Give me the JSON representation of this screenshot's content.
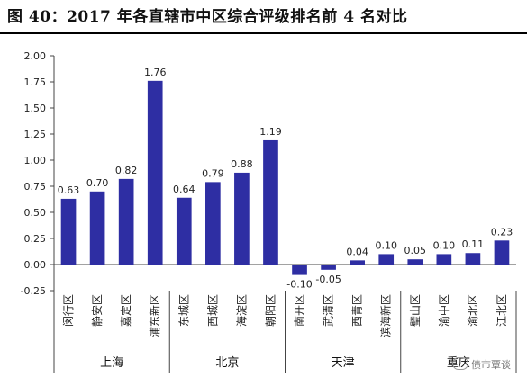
{
  "title": "图 40：2017 年各直辖市中区综合评级排名前 4 名对比",
  "watermark": "债市覃谈",
  "chart_data": {
    "type": "bar",
    "color": "#2E2EA3",
    "ylim": [
      -0.25,
      2.0
    ],
    "yticks": [
      "2.00",
      "1.75",
      "1.50",
      "1.25",
      "1.00",
      "0.75",
      "0.50",
      "0.25",
      "0.00",
      "-0.25"
    ],
    "grid": false,
    "categories": [
      "闵行区",
      "静安区",
      "嘉定区",
      "浦东新区",
      "东城区",
      "西城区",
      "海淀区",
      "朝阳区",
      "南开区",
      "武清区",
      "西青区",
      "滨海新区",
      "璧山区",
      "渝中区",
      "渝北区",
      "江北区"
    ],
    "values": [
      0.63,
      0.7,
      0.82,
      1.76,
      0.64,
      0.79,
      0.88,
      1.19,
      -0.1,
      -0.05,
      0.04,
      0.1,
      0.05,
      0.1,
      0.11,
      0.23
    ],
    "value_labels": [
      "0.63",
      "0.70",
      "0.82",
      "1.76",
      "0.64",
      "0.79",
      "0.88",
      "1.19",
      "-0.10",
      "-0.05",
      "0.04",
      "0.10",
      "0.05",
      "0.10",
      "0.11",
      "0.23"
    ],
    "groups": [
      {
        "name": "上海",
        "count": 4
      },
      {
        "name": "北京",
        "count": 4
      },
      {
        "name": "天津",
        "count": 4
      },
      {
        "name": "重庆",
        "count": 4
      }
    ]
  }
}
